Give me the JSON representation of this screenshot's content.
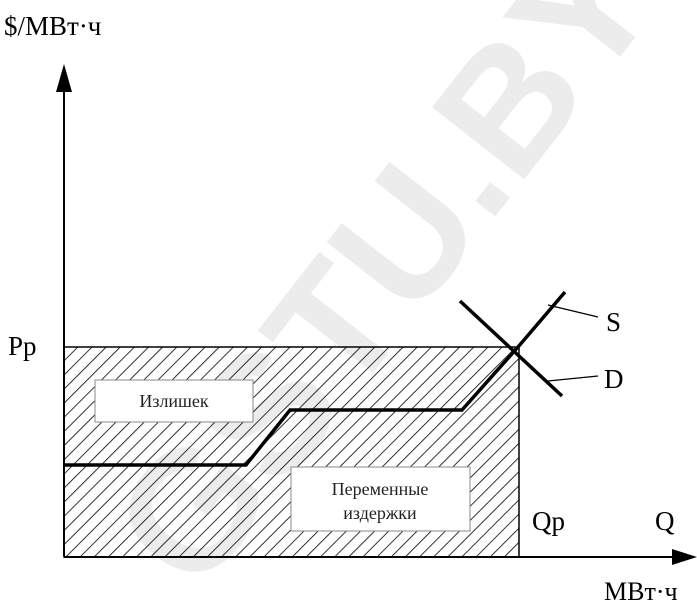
{
  "axes": {
    "y_unit": "$/МВт·ч",
    "x_unit": "МВт·ч",
    "price_tick": "Pp",
    "quantity_tick": "Qp",
    "quantity_axis_letter": "Q"
  },
  "curves": {
    "supply": "S",
    "demand": "D"
  },
  "regions": {
    "surplus": "Излишек",
    "variable_costs_line1": "Переменные",
    "variable_costs_line2": "издержки"
  },
  "watermark": {
    "text": "GSTU.BY"
  }
}
